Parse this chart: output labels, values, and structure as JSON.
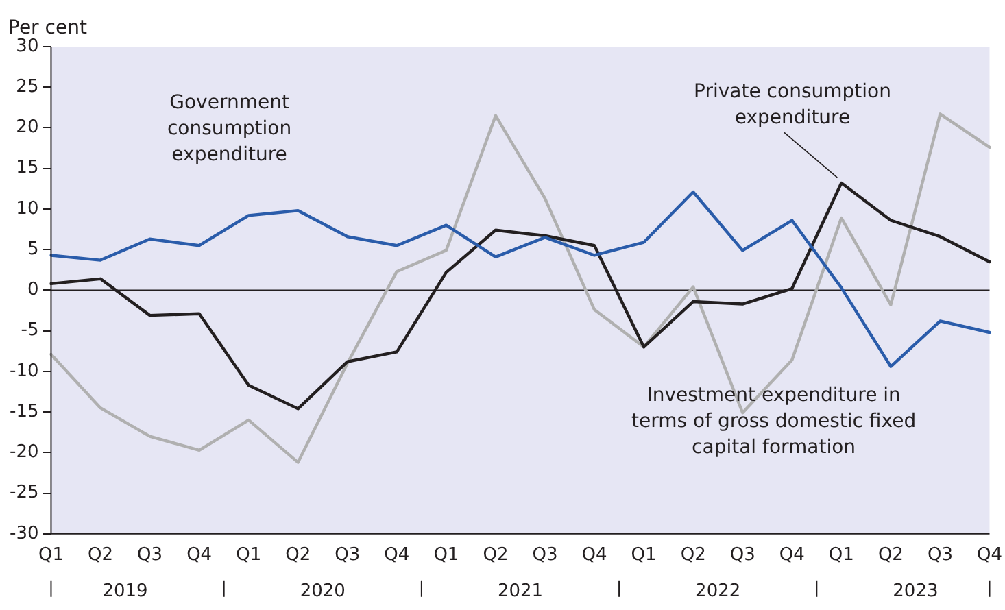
{
  "chart_data": {
    "type": "line",
    "ylabel": "Per cent",
    "categories": [
      "Q1",
      "Q2",
      "Q3",
      "Q4",
      "Q1",
      "Q2",
      "Q3",
      "Q4",
      "Q1",
      "Q2",
      "Q3",
      "Q4",
      "Q1",
      "Q2",
      "Q3",
      "Q4",
      "Q1",
      "Q2",
      "Q3",
      "Q4"
    ],
    "annotations": [
      "2019",
      "2020",
      "2021",
      "2022",
      "2023"
    ],
    "series": [
      {
        "name": "Government consumption expenditure",
        "color": "#2a5caa",
        "values": [
          4.3,
          3.7,
          6.3,
          5.5,
          9.2,
          9.8,
          6.6,
          5.5,
          8.0,
          4.1,
          6.5,
          4.3,
          5.9,
          12.1,
          4.9,
          8.6,
          0.3,
          -9.4,
          -3.8,
          -5.2
        ]
      },
      {
        "name": "Private consumption expenditure",
        "color": "#231f20",
        "values": [
          0.8,
          1.4,
          -3.1,
          -2.9,
          -11.7,
          -14.6,
          -8.8,
          -7.6,
          2.2,
          7.4,
          6.7,
          5.5,
          -7.0,
          -1.4,
          -1.7,
          0.2,
          13.2,
          8.6,
          6.6,
          3.5
        ]
      },
      {
        "name": "Investment expenditure in terms of gross domestic fixed capital formation",
        "color": "#b0b0b0",
        "values": [
          -7.9,
          -14.5,
          -18.0,
          -19.7,
          -16.0,
          -21.2,
          -9.0,
          2.3,
          4.9,
          21.5,
          11.3,
          -2.4,
          -7.0,
          0.4,
          -15.1,
          -8.6,
          8.9,
          -1.8,
          21.7,
          17.6
        ]
      }
    ],
    "ylim": [
      -30,
      30
    ],
    "yticks": [
      -30,
      -25,
      -20,
      -15,
      -10,
      -5,
      0,
      5,
      10,
      15,
      20,
      25,
      30
    ],
    "ref_lines": [
      {
        "axis": "y",
        "value": 0,
        "color": "#231f20"
      }
    ],
    "grid": false,
    "legend": false,
    "marker": "none",
    "line_style": "solid"
  }
}
